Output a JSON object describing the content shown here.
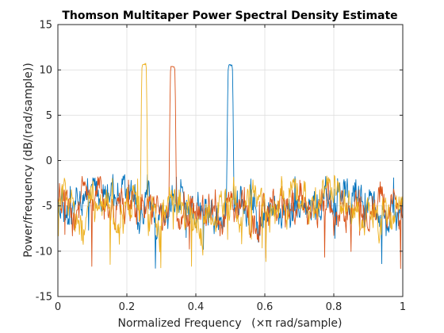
{
  "chart_data": {
    "type": "line",
    "title": "Thomson Multitaper Power Spectral Density Estimate",
    "xlabel_main": "Normalized Frequency",
    "xlabel_unit": "(×π rad/sample)",
    "ylabel": "Power/frequency (dB/(rad/sample))",
    "xlim": [
      0,
      1
    ],
    "ylim": [
      -15,
      15
    ],
    "xticks": [
      0,
      0.2,
      0.4,
      0.6,
      0.8,
      1
    ],
    "xtick_labels": [
      "0",
      "0.2",
      "0.4",
      "0.6",
      "0.8",
      "1"
    ],
    "yticks": [
      -15,
      -10,
      -5,
      0,
      5,
      10,
      15
    ],
    "ytick_labels": [
      "-15",
      "-10",
      "-5",
      "0",
      "5",
      "10",
      "15"
    ],
    "grid": true,
    "noise_floor_db": -5,
    "series": [
      {
        "color": "#0072BD",
        "peak_frequency": 0.5,
        "peak_db": 10.6,
        "peak_halfwidth": 0.007
      },
      {
        "color": "#D95319",
        "peak_frequency": 0.333,
        "peak_db": 10.5,
        "peak_halfwidth": 0.007
      },
      {
        "color": "#EDB120",
        "peak_frequency": 0.25,
        "peak_db": 10.8,
        "peak_halfwidth": 0.007
      }
    ]
  }
}
